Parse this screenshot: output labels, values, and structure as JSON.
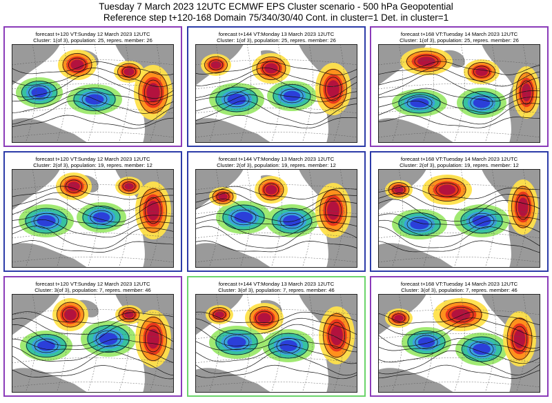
{
  "header": {
    "line1": "Tuesday 7 March 2023 12UTC ECMWF EPS Cluster scenario - 500 hPa Geopotential",
    "line2": "Reference step t+120-168 Domain 75/340/30/40 Cont. in cluster=1 Det. in cluster=1"
  },
  "colors": {
    "frame_purple": "#8a3ab9",
    "frame_blue": "#2b3aa8",
    "frame_green": "#6ad46a",
    "land": "#9a9a9a"
  },
  "panels": [
    {
      "frame": "frame_purple",
      "title": "forecast t+120 VT:Sunday 12 March 2023 12UTC",
      "subtitle": "Cluster: 1(of 3), population: 25, repres. member: 26"
    },
    {
      "frame": "frame_blue",
      "title": "forecast t+144 VT:Monday 13 March 2023 12UTC",
      "subtitle": "Cluster: 1(of 3), population: 25, repres. member: 26"
    },
    {
      "frame": "frame_purple",
      "title": "forecast t+168 VT:Tuesday 14 March 2023 12UTC",
      "subtitle": "Cluster: 1(of 3), population: 25, repres. member: 26"
    },
    {
      "frame": "frame_blue",
      "title": "forecast t+120 VT:Sunday 12 March 2023 12UTC",
      "subtitle": "Cluster: 2(of 3), population: 19, repres. member: 12"
    },
    {
      "frame": "frame_blue",
      "title": "forecast t+144 VT:Monday 13 March 2023 12UTC",
      "subtitle": "Cluster: 2(of 3), population: 19, repres. member: 12"
    },
    {
      "frame": "frame_blue",
      "title": "forecast t+168 VT:Tuesday 14 March 2023 12UTC",
      "subtitle": "Cluster: 2(of 3), population: 19, repres. member: 12"
    },
    {
      "frame": "frame_purple",
      "title": "forecast t+120 VT:Sunday 12 March 2023 12UTC",
      "subtitle": "Cluster: 3(of 3), population: 7, repres. member: 46"
    },
    {
      "frame": "frame_green",
      "title": "forecast t+144 VT:Monday 13 March 2023 12UTC",
      "subtitle": "Cluster: 3(of 3), population: 7, repres. member: 46"
    },
    {
      "frame": "frame_purple",
      "title": "forecast t+168 VT:Tuesday 14 March 2023 12UTC",
      "subtitle": "Cluster: 3(of 3), population: 7, repres. member: 46"
    }
  ]
}
